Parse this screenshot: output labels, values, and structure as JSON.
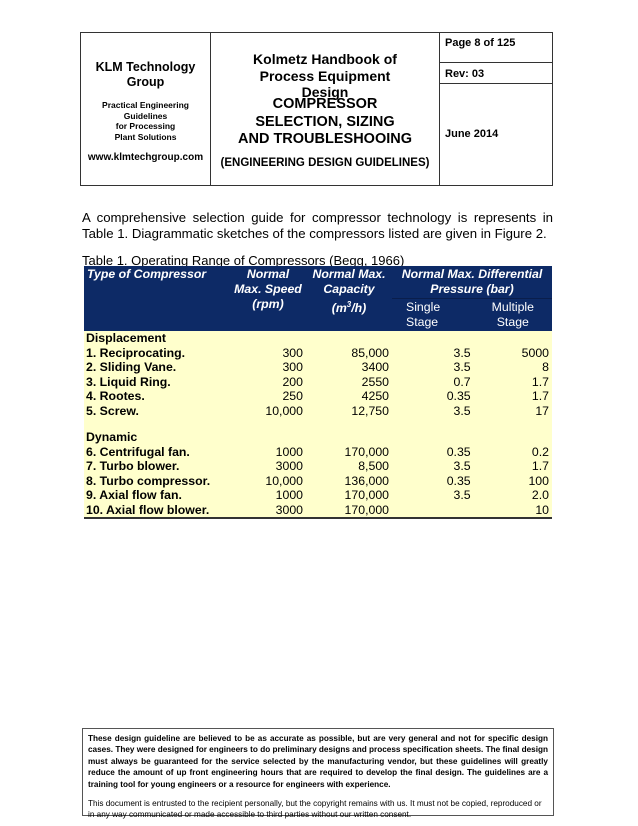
{
  "header": {
    "company": "KLM Technology Group",
    "tagline": [
      "Practical Engineering",
      "Guidelines",
      "for Processing",
      "Plant Solutions"
    ],
    "website": "www.klmtechgroup.com",
    "handbook": "Kolmetz Handbook of Process Equipment Design",
    "title_lines": [
      "COMPRESSOR",
      "SELECTION, SIZING",
      "AND TROUBLESHOOING"
    ],
    "subtitle": "(ENGINEERING DESIGN GUIDELINES)",
    "page": "Page 8 of  125",
    "rev": "Rev: 03",
    "date": "June 2014"
  },
  "body_text": "A comprehensive selection guide for compressor technology is represents in Table 1. Diagrammatic sketches of the compressors listed are given in Figure 2.",
  "table": {
    "caption": "Table 1. Operating Range of Compressors (Begg, 1966)",
    "headers": {
      "type": "Type of Compressor",
      "speed": "Normal Max. Speed (rpm)",
      "capacity_pre": "Normal Max. Capacity (m",
      "capacity_sup": "3",
      "capacity_post": "/h)",
      "pressure": "Normal Max. Differential Pressure (bar)",
      "single": "Single Stage",
      "multiple": "Multiple Stage"
    },
    "groups": [
      {
        "name": "Displacement",
        "rows": [
          [
            "1. Reciprocating.",
            "300",
            "85,000",
            "3.5",
            "5000"
          ],
          [
            "2. Sliding Vane.",
            "300",
            "3400",
            "3.5",
            "8"
          ],
          [
            "3. Liquid Ring.",
            "200",
            "2550",
            "0.7",
            "1.7"
          ],
          [
            "4. Rootes.",
            "250",
            "4250",
            "0.35",
            "1.7"
          ],
          [
            "5. Screw.",
            "10,000",
            "12,750",
            "3.5",
            "17"
          ]
        ]
      },
      {
        "name": "Dynamic",
        "rows": [
          [
            "6. Centrifugal fan.",
            "1000",
            "170,000",
            "0.35",
            "0.2"
          ],
          [
            "7. Turbo blower.",
            "3000",
            "8,500",
            "3.5",
            "1.7"
          ],
          [
            "8. Turbo compressor.",
            "10,000",
            "136,000",
            "0.35",
            "100"
          ],
          [
            "9. Axial flow fan.",
            "1000",
            "170,000",
            "3.5",
            "2.0"
          ],
          [
            "10. Axial flow blower.",
            "3000",
            "170,000",
            "",
            "10"
          ]
        ]
      }
    ]
  },
  "footer": {
    "disclaimer": "These design guideline are believed to be as accurate as possible, but are very general and not for specific design cases. They were designed for engineers to do preliminary designs and process specification sheets.  The final design must always be guaranteed for the service selected by the manufacturing vendor, but these guidelines will greatly reduce the amount of up front engineering hours that are required to develop the final design. The guidelines are a training tool for young engineers or a resource for engineers with experience.",
    "copyright": "This document is entrusted to the recipient personally, but the copyright remains with us. It must not be copied, reproduced or in any way communicated or made accessible to third parties without our written consent."
  }
}
